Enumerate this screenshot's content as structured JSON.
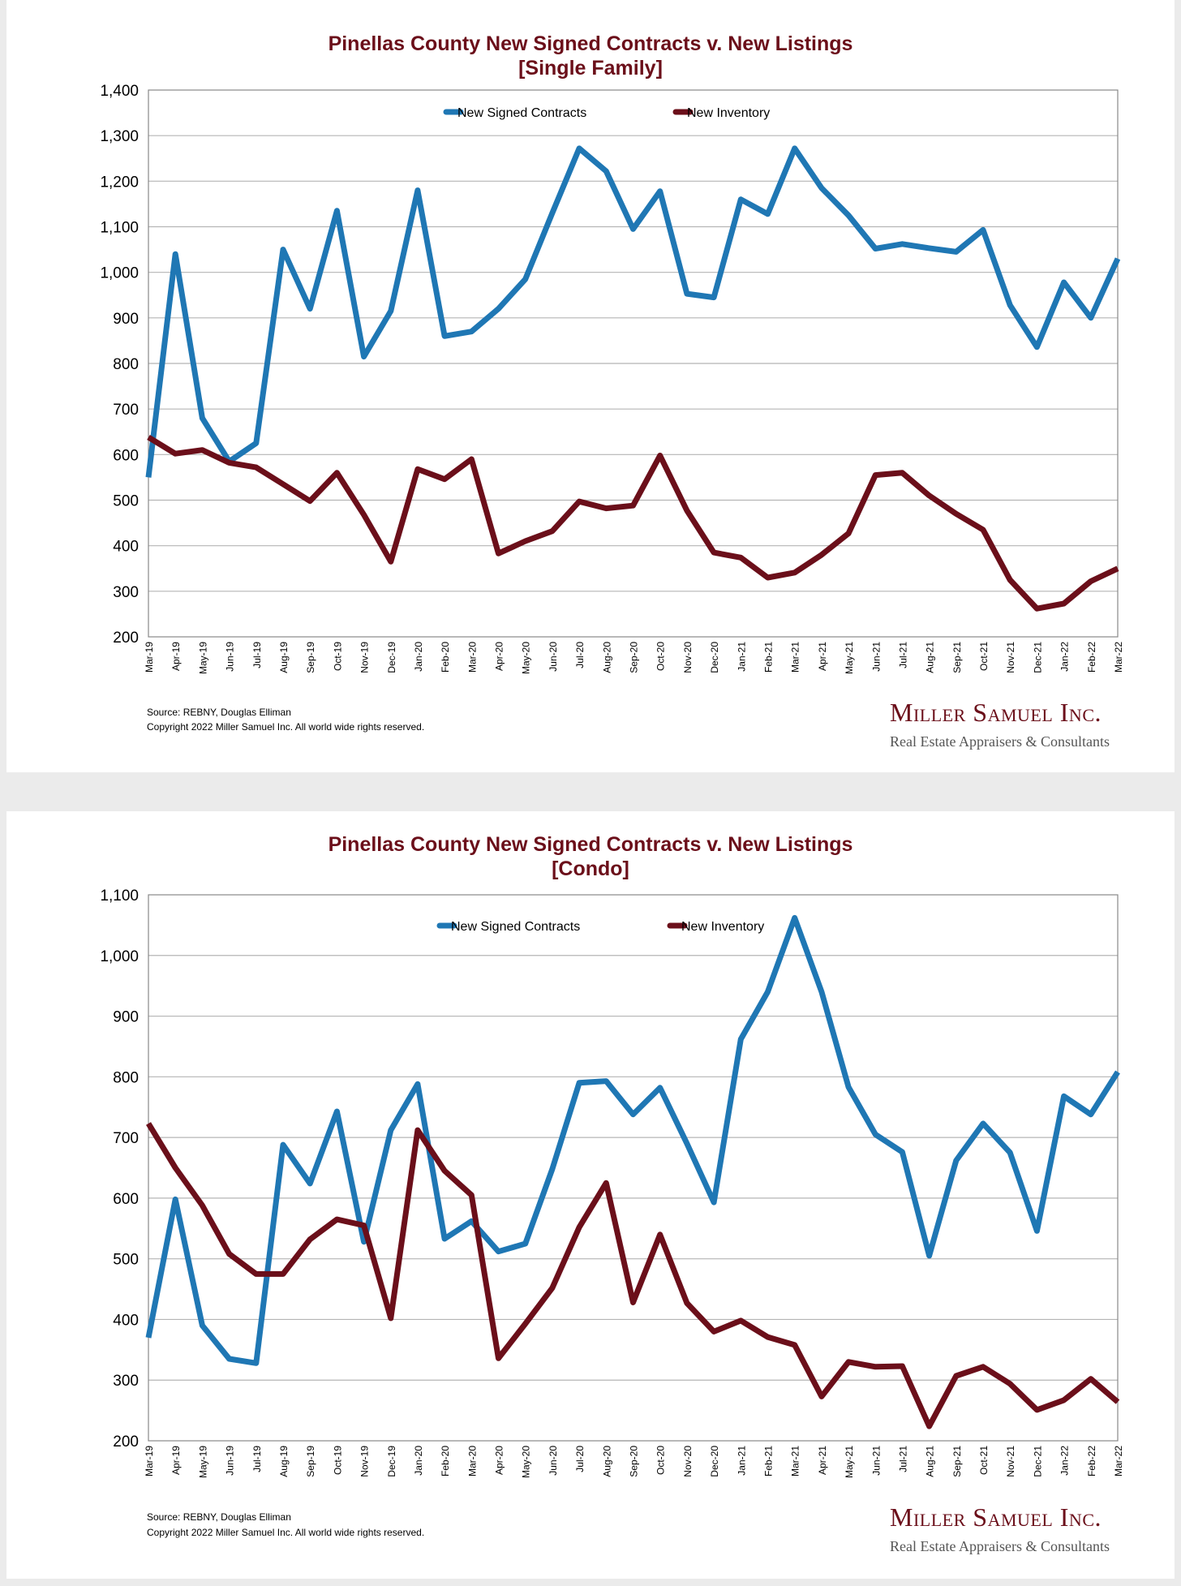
{
  "colors": {
    "contracts": "#1f77b4",
    "inventory": "#6b0f1a",
    "title": "#6b0f1a"
  },
  "chart_data": [
    {
      "type": "line",
      "title": "Pinellas County New Signed Contracts v. New Listings",
      "subtitle": "[Single Family]",
      "ylim": [
        200,
        1400
      ],
      "yticks": [
        200,
        300,
        400,
        500,
        600,
        700,
        800,
        900,
        1000,
        1100,
        1200,
        1300,
        1400
      ],
      "ytick_labels": [
        "200",
        "300",
        "400",
        "500",
        "600",
        "700",
        "800",
        "900",
        "1,000",
        "1,100",
        "1,200",
        "1,300",
        "1,400"
      ],
      "grid": true,
      "legend": "top-center",
      "categories": [
        "Mar-19",
        "Apr-19",
        "May-19",
        "Jun-19",
        "Jul-19",
        "Aug-19",
        "Sep-19",
        "Oct-19",
        "Nov-19",
        "Dec-19",
        "Jan-20",
        "Feb-20",
        "Mar-20",
        "Apr-20",
        "May-20",
        "Jun-20",
        "Jul-20",
        "Aug-20",
        "Sep-20",
        "Oct-20",
        "Nov-20",
        "Dec-20",
        "Jan-21",
        "Feb-21",
        "Mar-21",
        "Apr-21",
        "May-21",
        "Jun-21",
        "Jul-21",
        "Aug-21",
        "Sep-21",
        "Oct-21",
        "Nov-21",
        "Dec-21",
        "Jan-22",
        "Feb-22",
        "Mar-22"
      ],
      "series": [
        {
          "name": "New Signed Contracts",
          "color": "#1f77b4",
          "values": [
            550,
            1040,
            680,
            585,
            625,
            1050,
            920,
            1135,
            815,
            915,
            1180,
            860,
            870,
            920,
            985,
            1130,
            1272,
            1222,
            1095,
            1178,
            953,
            945,
            1160,
            1128,
            1272,
            1185,
            1125,
            1052,
            1062,
            1053,
            1045,
            1093,
            928,
            836,
            978,
            900,
            1030
          ]
        },
        {
          "name": "New Inventory",
          "color": "#6b0f1a",
          "values": [
            638,
            602,
            610,
            582,
            572,
            535,
            498,
            560,
            468,
            365,
            568,
            546,
            590,
            383,
            410,
            432,
            497,
            482,
            488,
            598,
            477,
            385,
            374,
            330,
            341,
            380,
            427,
            555,
            560,
            510,
            470,
            435,
            325,
            262,
            273,
            322,
            350
          ]
        }
      ]
    },
    {
      "type": "line",
      "title": "Pinellas County New Signed Contracts v. New Listings",
      "subtitle": "[Condo]",
      "ylim": [
        200,
        1100
      ],
      "yticks": [
        200,
        300,
        400,
        500,
        600,
        700,
        800,
        900,
        1000,
        1100
      ],
      "ytick_labels": [
        "200",
        "300",
        "400",
        "500",
        "600",
        "700",
        "800",
        "900",
        "1,000",
        "1,100"
      ],
      "grid": true,
      "legend": "top-center",
      "categories": [
        "Mar-19",
        "Apr-19",
        "May-19",
        "Jun-19",
        "Jul-19",
        "Aug-19",
        "Sep-19",
        "Oct-19",
        "Nov-19",
        "Dec-19",
        "Jan-20",
        "Feb-20",
        "Mar-20",
        "Apr-20",
        "May-20",
        "Jun-20",
        "Jul-20",
        "Aug-20",
        "Sep-20",
        "Oct-20",
        "Nov-20",
        "Dec-20",
        "Jan-21",
        "Feb-21",
        "Mar-21",
        "Apr-21",
        "May-21",
        "Jun-21",
        "Jul-21",
        "Aug-21",
        "Sep-21",
        "Oct-21",
        "Nov-21",
        "Dec-21",
        "Jan-22",
        "Feb-22",
        "Mar-22"
      ],
      "series": [
        {
          "name": "New Signed Contracts",
          "color": "#1f77b4",
          "values": [
            370,
            598,
            390,
            335,
            328,
            688,
            624,
            743,
            528,
            712,
            788,
            533,
            562,
            512,
            525,
            648,
            790,
            793,
            738,
            782,
            690,
            593,
            862,
            940,
            1062,
            940,
            783,
            705,
            676,
            505,
            662,
            723,
            675,
            546,
            768,
            738,
            808
          ]
        },
        {
          "name": "New Inventory",
          "color": "#6b0f1a",
          "values": [
            723,
            650,
            588,
            508,
            475,
            475,
            532,
            565,
            555,
            402,
            712,
            645,
            605,
            336,
            393,
            452,
            552,
            625,
            428,
            540,
            427,
            380,
            398,
            371,
            358,
            273,
            330,
            322,
            323,
            224,
            307,
            322,
            294,
            251,
            267,
            302,
            264
          ]
        }
      ]
    }
  ],
  "footer": {
    "source": "Source: REBNY, Douglas Elliman",
    "copyright": "Copyright 2022 Miller Samuel Inc.  All world wide rights reserved.",
    "logo_name": "Miller Samuel Inc.",
    "logo_tagline": "Real Estate Appraisers & Consultants"
  }
}
